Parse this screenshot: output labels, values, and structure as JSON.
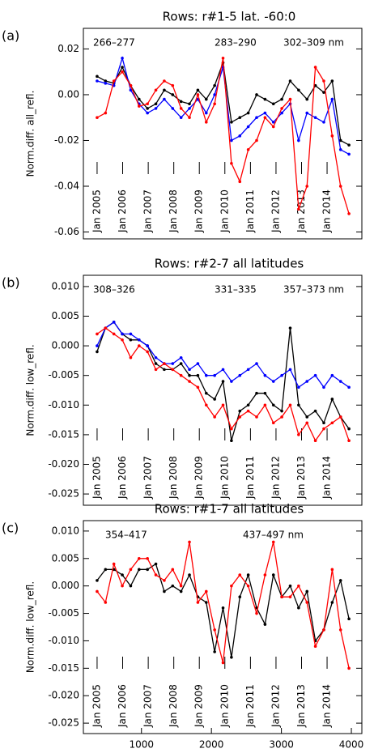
{
  "chart_data": [
    {
      "type": "line",
      "panel_label": "(a)",
      "title": "Rows:  r#1-5 lat. -60:0",
      "y_label": "Norm.diff. all_refl.",
      "xlim": [
        170,
        4150
      ],
      "ylim": [
        -0.063,
        0.029
      ],
      "yticks": [
        0.02,
        {
          "value": 0,
          "label": "0.00"
        },
        -0.02,
        -0.04,
        -0.06
      ],
      "year_labels": {
        "x": [
          366,
          731,
          1097,
          1462,
          1827,
          2192,
          2558,
          2923,
          3288,
          3653
        ],
        "labels": [
          "Jan 2005",
          "Jan 2006",
          "Jan 2007",
          "Jan 2008",
          "Jan 2009",
          "Jan 2010",
          "Jan 2011",
          "Jan 2012",
          "Jan 2013",
          "Jan 2014"
        ]
      },
      "x": [
        366,
        486,
        606,
        726,
        846,
        966,
        1086,
        1206,
        1326,
        1446,
        1566,
        1686,
        1806,
        1926,
        2046,
        2166,
        2286,
        2406,
        2526,
        2646,
        2766,
        2886,
        3006,
        3126,
        3246,
        3366,
        3486,
        3606,
        3726,
        3846,
        3966
      ],
      "series": [
        {
          "name": "266–277",
          "color": "#000000",
          "values": [
            0.008,
            0.006,
            0.005,
            0.012,
            0.004,
            -0.002,
            -0.006,
            -0.004,
            0.002,
            0.0,
            -0.003,
            -0.004,
            0.002,
            -0.002,
            0.004,
            0.014,
            -0.012,
            -0.01,
            -0.008,
            0.0,
            -0.002,
            -0.004,
            -0.002,
            0.006,
            0.002,
            -0.002,
            0.004,
            0.001,
            0.006,
            -0.02,
            -0.022
          ]
        },
        {
          "name": "283–290",
          "color": "#0000ff",
          "values": [
            0.006,
            0.005,
            0.004,
            0.016,
            0.002,
            -0.004,
            -0.008,
            -0.006,
            -0.002,
            -0.006,
            -0.01,
            -0.006,
            -0.002,
            -0.008,
            0.0,
            0.012,
            -0.02,
            -0.018,
            -0.014,
            -0.01,
            -0.008,
            -0.012,
            -0.008,
            -0.004,
            -0.02,
            -0.008,
            -0.01,
            -0.012,
            -0.002,
            -0.024,
            -0.026
          ]
        },
        {
          "name": "302–309 nm",
          "color": "#ff0000",
          "values": [
            -0.01,
            -0.008,
            0.006,
            0.01,
            0.004,
            -0.005,
            -0.004,
            0.002,
            0.006,
            0.004,
            -0.006,
            -0.01,
            0.0,
            -0.012,
            -0.004,
            0.016,
            -0.03,
            -0.038,
            -0.024,
            -0.02,
            -0.01,
            -0.014,
            -0.006,
            -0.002,
            -0.05,
            -0.04,
            0.012,
            0.006,
            -0.018,
            -0.04,
            -0.052
          ]
        }
      ]
    },
    {
      "type": "line",
      "panel_label": "(b)",
      "title": "Rows:  r#2-7 all latitudes",
      "y_label": "Norm.diff. low_refl.",
      "xlim": [
        170,
        4150
      ],
      "ylim": [
        -0.0269,
        0.0119
      ],
      "yticks": [
        {
          "value": 0.01,
          "label": "0.010"
        },
        0.005,
        {
          "value": 0,
          "label": "0.000"
        },
        -0.005,
        {
          "value": -0.01,
          "label": "-0.010"
        },
        -0.015,
        {
          "value": -0.02,
          "label": "-0.020"
        },
        -0.025
      ],
      "year_labels": {
        "x": [
          366,
          731,
          1097,
          1462,
          1827,
          2192,
          2558,
          2923,
          3288,
          3653
        ],
        "labels": [
          "Jan 2005",
          "Jan 2006",
          "Jan 2007",
          "Jan 2008",
          "Jan 2009",
          "Jan 2010",
          "Jan 2011",
          "Jan 2012",
          "Jan 2013",
          "Jan 2014"
        ]
      },
      "x": [
        366,
        486,
        606,
        726,
        846,
        966,
        1086,
        1206,
        1326,
        1446,
        1566,
        1686,
        1806,
        1926,
        2046,
        2166,
        2286,
        2406,
        2526,
        2646,
        2766,
        2886,
        3006,
        3126,
        3246,
        3366,
        3486,
        3606,
        3726,
        3846,
        3966
      ],
      "series": [
        {
          "name": "308–326",
          "color": "#000000",
          "values": [
            -0.001,
            0.003,
            0.004,
            0.002,
            0.001,
            0.001,
            0.0,
            -0.003,
            -0.004,
            -0.004,
            -0.003,
            -0.005,
            -0.005,
            -0.008,
            -0.009,
            -0.006,
            -0.016,
            -0.011,
            -0.01,
            -0.008,
            -0.008,
            -0.01,
            -0.011,
            0.003,
            -0.01,
            -0.012,
            -0.011,
            -0.013,
            -0.009,
            -0.012,
            -0.014
          ]
        },
        {
          "name": "331–335",
          "color": "#0000ff",
          "values": [
            0.0,
            0.003,
            0.004,
            0.002,
            0.002,
            0.001,
            0.0,
            -0.002,
            -0.003,
            -0.003,
            -0.002,
            -0.004,
            -0.003,
            -0.005,
            -0.005,
            -0.004,
            -0.006,
            -0.005,
            -0.004,
            -0.003,
            -0.005,
            -0.006,
            -0.005,
            -0.004,
            -0.007,
            -0.006,
            -0.005,
            -0.007,
            -0.005,
            -0.006,
            -0.007
          ]
        },
        {
          "name": "357–373 nm",
          "color": "#ff0000",
          "values": [
            0.002,
            0.003,
            0.002,
            0.001,
            -0.002,
            0.0,
            -0.001,
            -0.004,
            -0.003,
            -0.004,
            -0.005,
            -0.006,
            -0.007,
            -0.01,
            -0.012,
            -0.01,
            -0.014,
            -0.012,
            -0.011,
            -0.012,
            -0.01,
            -0.013,
            -0.012,
            -0.01,
            -0.015,
            -0.013,
            -0.016,
            -0.014,
            -0.013,
            -0.012,
            -0.016
          ]
        }
      ]
    },
    {
      "type": "line",
      "panel_label": "(c)",
      "title": "Rows:  r#1-7 all latitudes",
      "y_label": "Norm.diff. low_refl.",
      "x_label": "Time, (days since 2004.0)",
      "xlim": [
        170,
        4150
      ],
      "ylim": [
        -0.0269,
        0.0119
      ],
      "xticks": [
        1000,
        2000,
        3000,
        4000
      ],
      "yticks": [
        {
          "value": 0.01,
          "label": "0.010"
        },
        0.005,
        {
          "value": 0,
          "label": "0.000"
        },
        -0.005,
        {
          "value": -0.01,
          "label": "-0.010"
        },
        -0.015,
        {
          "value": -0.02,
          "label": "-0.020"
        },
        -0.025
      ],
      "year_labels": {
        "x": [
          366,
          731,
          1097,
          1462,
          1827,
          2192,
          2558,
          2923,
          3288,
          3653
        ],
        "labels": [
          "Jan 2005",
          "Jan 2006",
          "Jan 2007",
          "Jan 2008",
          "Jan 2009",
          "Jan 2010",
          "Jan 2011",
          "Jan 2012",
          "Jan 2013",
          "Jan 2014"
        ]
      },
      "x": [
        366,
        486,
        606,
        726,
        846,
        966,
        1086,
        1206,
        1326,
        1446,
        1566,
        1686,
        1806,
        1926,
        2046,
        2166,
        2286,
        2406,
        2526,
        2646,
        2766,
        2886,
        3006,
        3126,
        3246,
        3366,
        3486,
        3606,
        3726,
        3846,
        3966
      ],
      "series": [
        {
          "name": "354–417",
          "color": "#000000",
          "values": [
            0.001,
            0.003,
            0.003,
            0.002,
            0.0,
            0.003,
            0.003,
            0.004,
            -0.001,
            0.0,
            -0.001,
            0.002,
            -0.002,
            -0.003,
            -0.012,
            -0.004,
            -0.013,
            -0.002,
            0.002,
            -0.004,
            -0.007,
            0.002,
            -0.002,
            0.0,
            -0.004,
            -0.001,
            -0.01,
            -0.008,
            -0.003,
            0.001,
            -0.006
          ]
        },
        {
          "name": "437–497 nm",
          "color": "#ff0000",
          "values": [
            -0.001,
            -0.003,
            0.004,
            0.0,
            0.003,
            0.005,
            0.005,
            0.002,
            0.001,
            0.003,
            0.0,
            0.008,
            -0.003,
            -0.001,
            -0.008,
            -0.014,
            0.0,
            0.002,
            0.0,
            -0.005,
            0.002,
            0.008,
            -0.002,
            -0.002,
            0.0,
            -0.003,
            -0.011,
            -0.008,
            0.003,
            -0.008,
            -0.015
          ]
        }
      ]
    }
  ]
}
